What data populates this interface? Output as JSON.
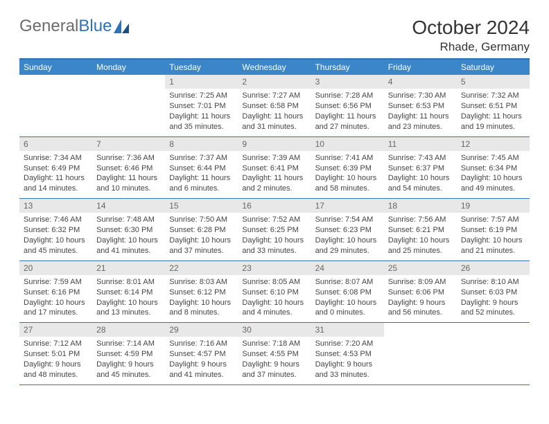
{
  "brand": {
    "name1": "General",
    "name2": "Blue"
  },
  "title": "October 2024",
  "subtitle": "Rhade, Germany",
  "colors": {
    "header_bg": "#3a86c8",
    "border": "#2f72b9",
    "daynum_bg": "#e8e8e8",
    "text": "#333333"
  },
  "day_names": [
    "Sunday",
    "Monday",
    "Tuesday",
    "Wednesday",
    "Thursday",
    "Friday",
    "Saturday"
  ],
  "weeks": [
    [
      {
        "n": "",
        "sr": "",
        "ss": "",
        "dl": ""
      },
      {
        "n": "",
        "sr": "",
        "ss": "",
        "dl": ""
      },
      {
        "n": "1",
        "sr": "Sunrise: 7:25 AM",
        "ss": "Sunset: 7:01 PM",
        "dl": "Daylight: 11 hours and 35 minutes."
      },
      {
        "n": "2",
        "sr": "Sunrise: 7:27 AM",
        "ss": "Sunset: 6:58 PM",
        "dl": "Daylight: 11 hours and 31 minutes."
      },
      {
        "n": "3",
        "sr": "Sunrise: 7:28 AM",
        "ss": "Sunset: 6:56 PM",
        "dl": "Daylight: 11 hours and 27 minutes."
      },
      {
        "n": "4",
        "sr": "Sunrise: 7:30 AM",
        "ss": "Sunset: 6:53 PM",
        "dl": "Daylight: 11 hours and 23 minutes."
      },
      {
        "n": "5",
        "sr": "Sunrise: 7:32 AM",
        "ss": "Sunset: 6:51 PM",
        "dl": "Daylight: 11 hours and 19 minutes."
      }
    ],
    [
      {
        "n": "6",
        "sr": "Sunrise: 7:34 AM",
        "ss": "Sunset: 6:49 PM",
        "dl": "Daylight: 11 hours and 14 minutes."
      },
      {
        "n": "7",
        "sr": "Sunrise: 7:36 AM",
        "ss": "Sunset: 6:46 PM",
        "dl": "Daylight: 11 hours and 10 minutes."
      },
      {
        "n": "8",
        "sr": "Sunrise: 7:37 AM",
        "ss": "Sunset: 6:44 PM",
        "dl": "Daylight: 11 hours and 6 minutes."
      },
      {
        "n": "9",
        "sr": "Sunrise: 7:39 AM",
        "ss": "Sunset: 6:41 PM",
        "dl": "Daylight: 11 hours and 2 minutes."
      },
      {
        "n": "10",
        "sr": "Sunrise: 7:41 AM",
        "ss": "Sunset: 6:39 PM",
        "dl": "Daylight: 10 hours and 58 minutes."
      },
      {
        "n": "11",
        "sr": "Sunrise: 7:43 AM",
        "ss": "Sunset: 6:37 PM",
        "dl": "Daylight: 10 hours and 54 minutes."
      },
      {
        "n": "12",
        "sr": "Sunrise: 7:45 AM",
        "ss": "Sunset: 6:34 PM",
        "dl": "Daylight: 10 hours and 49 minutes."
      }
    ],
    [
      {
        "n": "13",
        "sr": "Sunrise: 7:46 AM",
        "ss": "Sunset: 6:32 PM",
        "dl": "Daylight: 10 hours and 45 minutes."
      },
      {
        "n": "14",
        "sr": "Sunrise: 7:48 AM",
        "ss": "Sunset: 6:30 PM",
        "dl": "Daylight: 10 hours and 41 minutes."
      },
      {
        "n": "15",
        "sr": "Sunrise: 7:50 AM",
        "ss": "Sunset: 6:28 PM",
        "dl": "Daylight: 10 hours and 37 minutes."
      },
      {
        "n": "16",
        "sr": "Sunrise: 7:52 AM",
        "ss": "Sunset: 6:25 PM",
        "dl": "Daylight: 10 hours and 33 minutes."
      },
      {
        "n": "17",
        "sr": "Sunrise: 7:54 AM",
        "ss": "Sunset: 6:23 PM",
        "dl": "Daylight: 10 hours and 29 minutes."
      },
      {
        "n": "18",
        "sr": "Sunrise: 7:56 AM",
        "ss": "Sunset: 6:21 PM",
        "dl": "Daylight: 10 hours and 25 minutes."
      },
      {
        "n": "19",
        "sr": "Sunrise: 7:57 AM",
        "ss": "Sunset: 6:19 PM",
        "dl": "Daylight: 10 hours and 21 minutes."
      }
    ],
    [
      {
        "n": "20",
        "sr": "Sunrise: 7:59 AM",
        "ss": "Sunset: 6:16 PM",
        "dl": "Daylight: 10 hours and 17 minutes."
      },
      {
        "n": "21",
        "sr": "Sunrise: 8:01 AM",
        "ss": "Sunset: 6:14 PM",
        "dl": "Daylight: 10 hours and 13 minutes."
      },
      {
        "n": "22",
        "sr": "Sunrise: 8:03 AM",
        "ss": "Sunset: 6:12 PM",
        "dl": "Daylight: 10 hours and 8 minutes."
      },
      {
        "n": "23",
        "sr": "Sunrise: 8:05 AM",
        "ss": "Sunset: 6:10 PM",
        "dl": "Daylight: 10 hours and 4 minutes."
      },
      {
        "n": "24",
        "sr": "Sunrise: 8:07 AM",
        "ss": "Sunset: 6:08 PM",
        "dl": "Daylight: 10 hours and 0 minutes."
      },
      {
        "n": "25",
        "sr": "Sunrise: 8:09 AM",
        "ss": "Sunset: 6:06 PM",
        "dl": "Daylight: 9 hours and 56 minutes."
      },
      {
        "n": "26",
        "sr": "Sunrise: 8:10 AM",
        "ss": "Sunset: 6:03 PM",
        "dl": "Daylight: 9 hours and 52 minutes."
      }
    ],
    [
      {
        "n": "27",
        "sr": "Sunrise: 7:12 AM",
        "ss": "Sunset: 5:01 PM",
        "dl": "Daylight: 9 hours and 48 minutes."
      },
      {
        "n": "28",
        "sr": "Sunrise: 7:14 AM",
        "ss": "Sunset: 4:59 PM",
        "dl": "Daylight: 9 hours and 45 minutes."
      },
      {
        "n": "29",
        "sr": "Sunrise: 7:16 AM",
        "ss": "Sunset: 4:57 PM",
        "dl": "Daylight: 9 hours and 41 minutes."
      },
      {
        "n": "30",
        "sr": "Sunrise: 7:18 AM",
        "ss": "Sunset: 4:55 PM",
        "dl": "Daylight: 9 hours and 37 minutes."
      },
      {
        "n": "31",
        "sr": "Sunrise: 7:20 AM",
        "ss": "Sunset: 4:53 PM",
        "dl": "Daylight: 9 hours and 33 minutes."
      },
      {
        "n": "",
        "sr": "",
        "ss": "",
        "dl": ""
      },
      {
        "n": "",
        "sr": "",
        "ss": "",
        "dl": ""
      }
    ]
  ]
}
